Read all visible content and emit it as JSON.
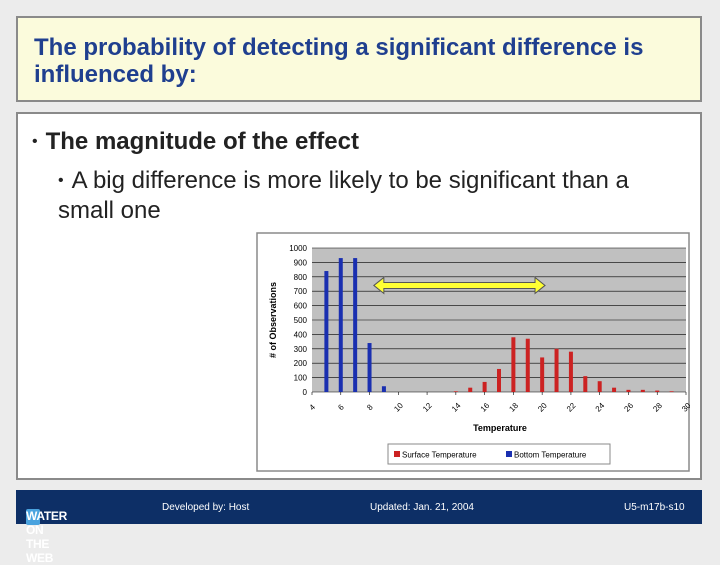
{
  "slide": {
    "title": "The probability of detecting a significant difference is influenced by:",
    "bullet_1": "The magnitude of the effect",
    "bullet_2": "A big difference is more likely to be significant than a small one",
    "bullet_marker": "•"
  },
  "footer": {
    "logo_text": "WATER ON THE WEB",
    "developed_by": "Developed by: Host",
    "updated": "Updated: Jan. 21, 2004",
    "code": "U5-m17b-s10"
  },
  "colors": {
    "surface": "#cc2222",
    "bottom": "#1a2fb0",
    "arrow_fill": "#ffff33",
    "plot_bg": "#c0c0c0"
  },
  "chart_data": {
    "type": "bar",
    "xlabel": "Temperature",
    "ylabel": "# of Observations",
    "ylim": [
      0,
      1000
    ],
    "yticks": [
      "1000",
      "900",
      "800",
      "700",
      "600",
      "500",
      "400",
      "300",
      "200",
      "100",
      "0"
    ],
    "xticks": [
      "4",
      "6",
      "8",
      "10",
      "12",
      "14",
      "16",
      "18",
      "20",
      "22",
      "24",
      "26",
      "28",
      "30"
    ],
    "grid": true,
    "legend_position": "bottom",
    "annotation": "double-headed arrow between the Bottom and Surface distributions",
    "series": [
      {
        "name": "Surface Temperature",
        "x": [
          14,
          15,
          16,
          17,
          18,
          19,
          20,
          21,
          22,
          23,
          24,
          25,
          26,
          27,
          28,
          29
        ],
        "values": [
          5,
          30,
          70,
          160,
          380,
          370,
          240,
          300,
          280,
          110,
          75,
          30,
          15,
          15,
          10,
          5
        ]
      },
      {
        "name": "Bottom Temperature",
        "x": [
          5,
          6,
          7,
          8,
          9
        ],
        "values": [
          840,
          930,
          930,
          340,
          40
        ]
      }
    ]
  }
}
